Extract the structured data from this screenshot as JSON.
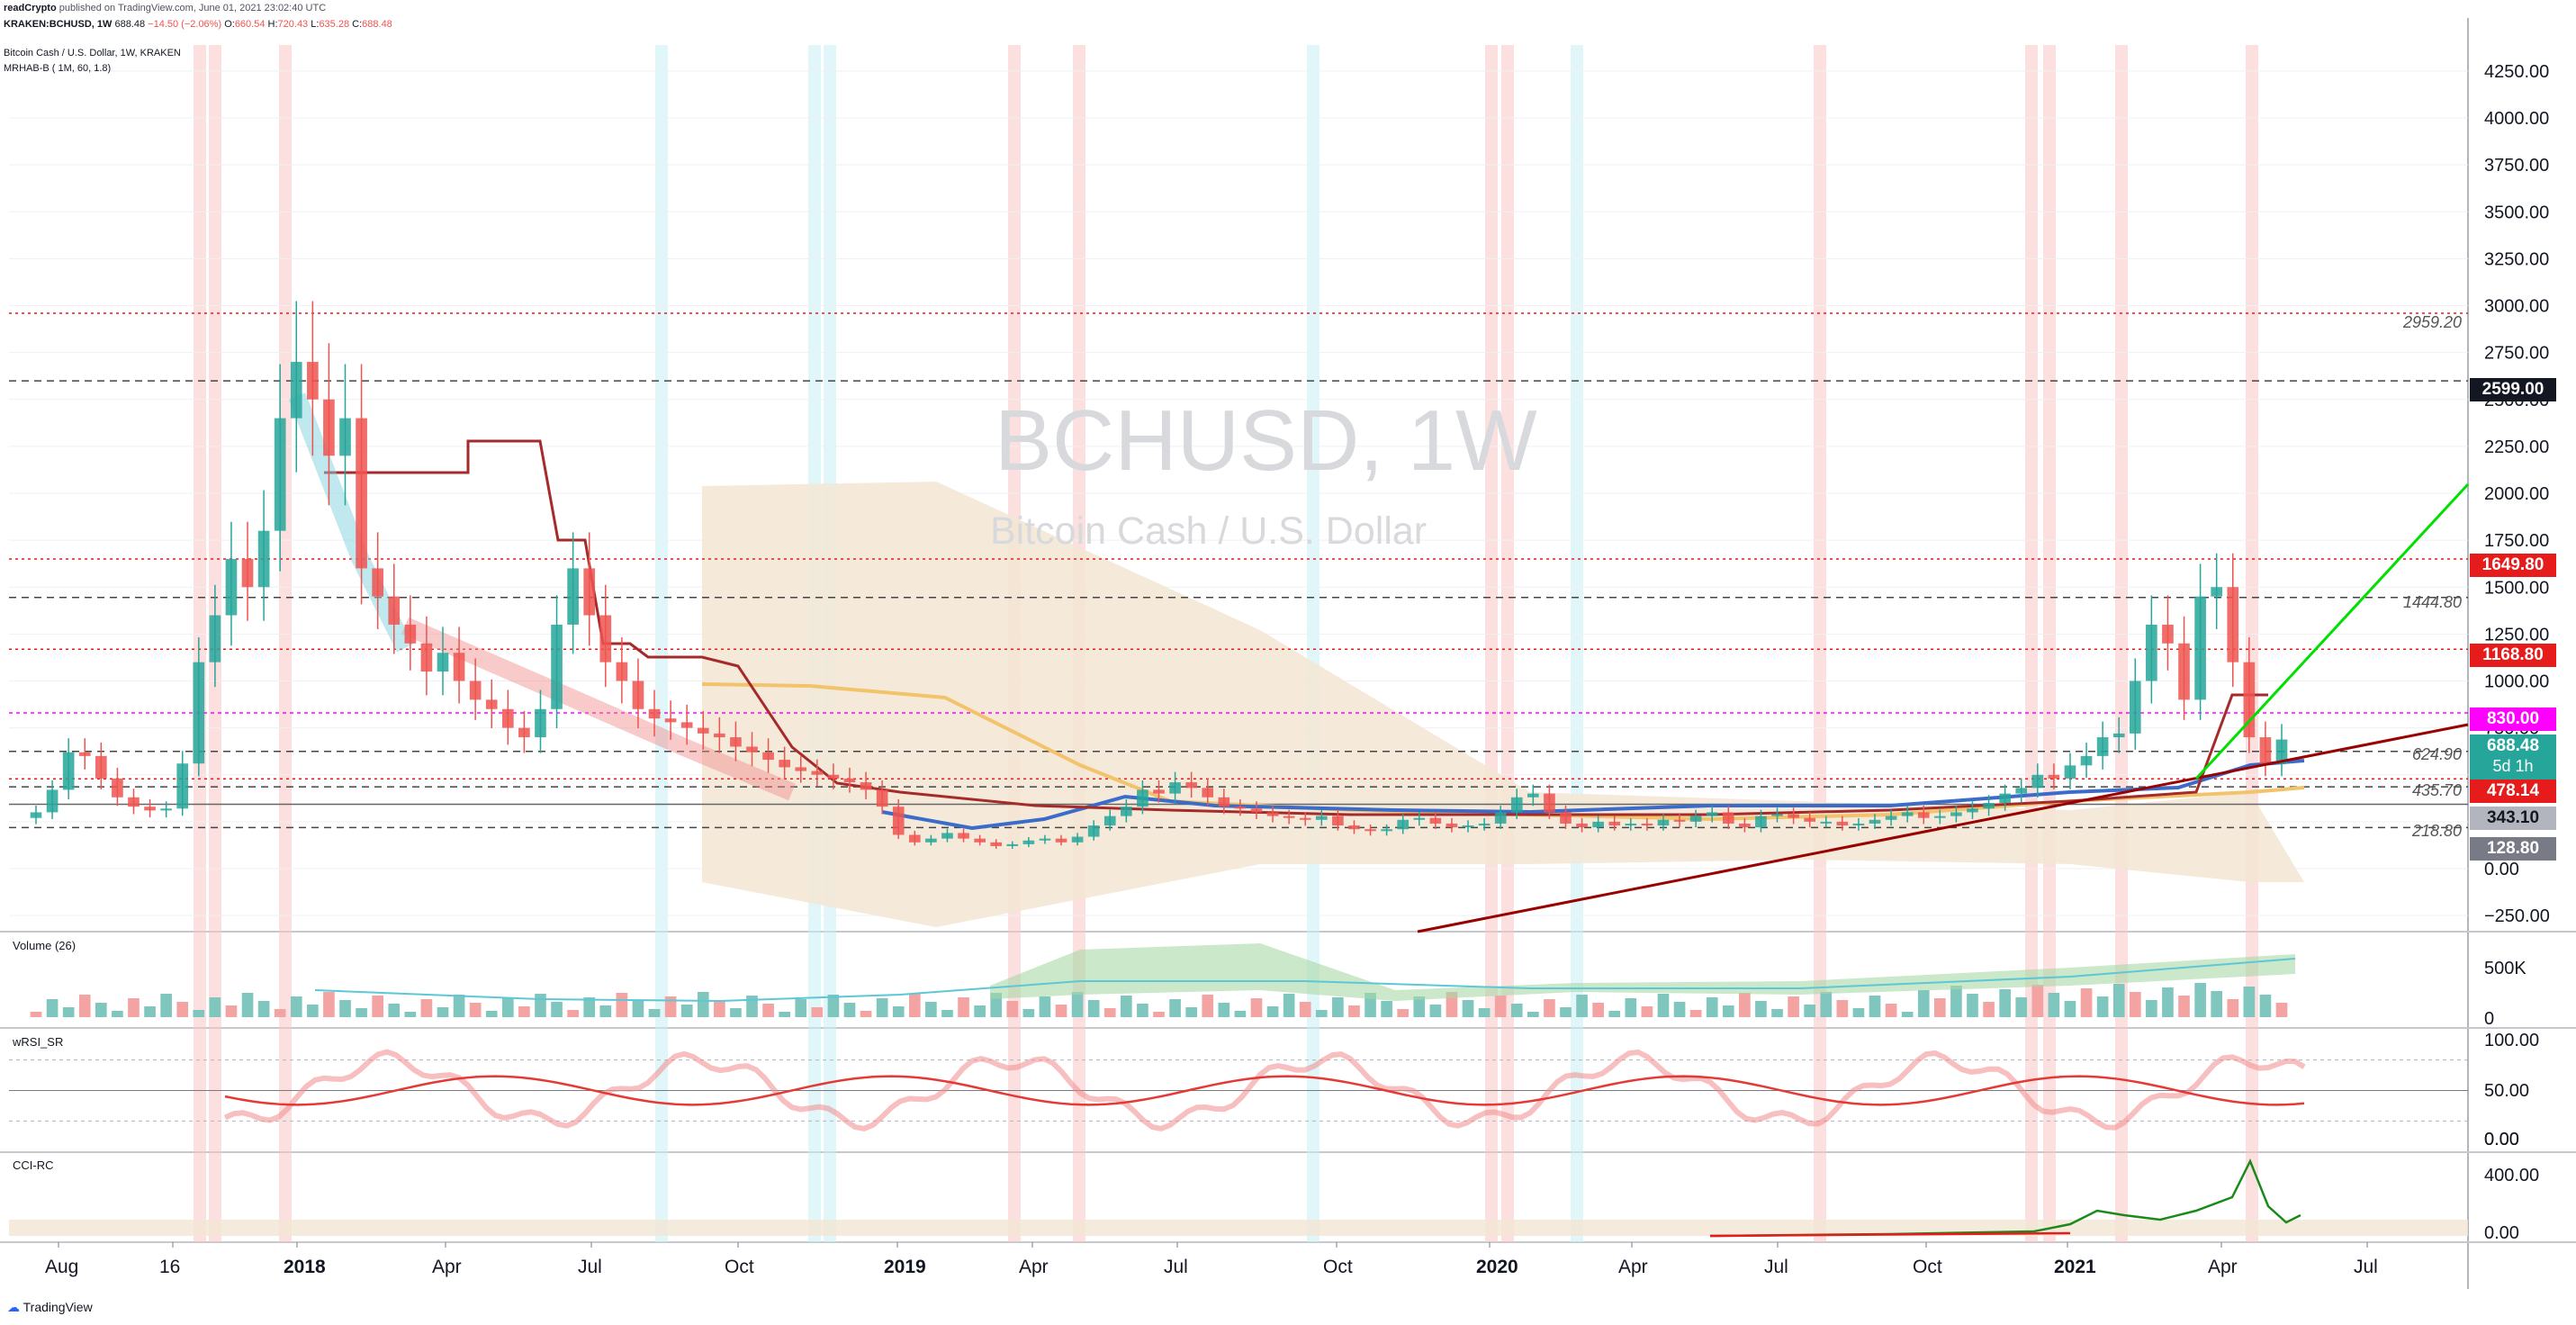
{
  "header": {
    "publisher": "readCrypto",
    "published_text": "published on TradingView.com, June 01, 2021 23:02:40 UTC",
    "symbol_line": "KRAKEN:BCHUSD, 1W",
    "ohlc_price": "688.48",
    "ohlc_change": "−14.50 (−2.06%)",
    "open_label": "O:",
    "open": "660.54",
    "high_label": "H:",
    "high": "720.43",
    "low_label": "L:",
    "low": "635.28",
    "close_label": "C:",
    "close": "688.48"
  },
  "legend": {
    "title": "Bitcoin Cash / U.S. Dollar, 1W, KRAKEN",
    "indicator": "MRHAB-B ( 1M, 60, 1.8)"
  },
  "watermark": {
    "symbol": "BCHUSD, 1W",
    "description": "Bitcoin Cash / U.S. Dollar"
  },
  "colors": {
    "up": "#26a69a",
    "down": "#ef5350",
    "accent_green": "#00e000",
    "trendline": "#990000",
    "magenta": "#ff00ff"
  },
  "levels": [
    {
      "price": "2959.20",
      "style": "dotted-red"
    },
    {
      "price": "1444.80",
      "style": "dashed-gray"
    },
    {
      "price": "624.90",
      "style": "dashed-gray"
    },
    {
      "price": "435.70",
      "style": "dashed-gray"
    },
    {
      "price": "218.80",
      "style": "dashed-gray"
    }
  ],
  "price_tags": [
    {
      "value": "2599.00",
      "color": "#131722"
    },
    {
      "value": "1649.80",
      "color": "#e61c1c"
    },
    {
      "value": "1168.80",
      "color": "#e61c1c"
    },
    {
      "value": "830.00",
      "color": "#ff00ff"
    },
    {
      "value": "688.48",
      "color": "#26a69a",
      "sub": "5d 1h"
    },
    {
      "value": "478.14",
      "color": "#e61c1c"
    },
    {
      "value": "343.10",
      "color": "#b2b5be"
    },
    {
      "value": "128.80",
      "color": "#787b86"
    }
  ],
  "panes": {
    "volume": {
      "label": "Volume (26)",
      "ticks": [
        "500K",
        "0"
      ]
    },
    "wrsi": {
      "label": "wRSI_SR",
      "ticks": [
        "100.00",
        "50.00",
        "0.00"
      ]
    },
    "cci": {
      "label": "CCI-RC",
      "ticks": [
        "400.00",
        "0.00"
      ]
    }
  },
  "chart_data": {
    "type": "candlestick",
    "title": "BCHUSD, 1W",
    "ylim": [
      -250,
      4500
    ],
    "y_ticks": [
      "4250.00",
      "4000.00",
      "3750.00",
      "3500.00",
      "3250.00",
      "3000.00",
      "2750.00",
      "2500.00",
      "2250.00",
      "2000.00",
      "1750.00",
      "1500.00",
      "1250.00",
      "1000.00",
      "750.00",
      "500.00",
      "250.00",
      "0.00",
      "−250.00"
    ],
    "x_ticks": [
      "Aug",
      "16",
      "2018",
      "Apr",
      "Jul",
      "Oct",
      "2019",
      "Apr",
      "Jul",
      "Oct",
      "2020",
      "Apr",
      "Jul",
      "Oct",
      "2021",
      "Apr",
      "Jul"
    ],
    "closes": [
      300,
      420,
      620,
      600,
      480,
      380,
      330,
      310,
      320,
      560,
      1100,
      1350,
      1650,
      1500,
      1800,
      2400,
      2700,
      2500,
      2200,
      2400,
      1600,
      1450,
      1300,
      1200,
      1050,
      1150,
      1000,
      900,
      850,
      750,
      700,
      850,
      1300,
      1600,
      1350,
      1100,
      1000,
      850,
      800,
      780,
      750,
      720,
      700,
      650,
      620,
      580,
      540,
      520,
      500,
      480,
      460,
      420,
      330,
      180,
      140,
      160,
      190,
      160,
      140,
      120,
      130,
      150,
      160,
      140,
      170,
      230,
      280,
      330,
      420,
      400,
      460,
      430,
      380,
      330,
      320,
      300,
      280,
      270,
      260,
      280,
      230,
      210,
      200,
      210,
      260,
      270,
      240,
      220,
      230,
      240,
      300,
      380,
      400,
      300,
      240,
      220,
      250,
      230,
      240,
      230,
      260,
      250,
      280,
      300,
      240,
      220,
      280,
      290,
      270,
      250,
      250,
      230,
      240,
      260,
      280,
      300,
      270,
      280,
      300,
      320,
      350,
      400,
      430,
      500,
      480,
      550,
      600,
      700,
      720,
      1000,
      1300,
      1200,
      900,
      1450,
      1500,
      1100,
      700,
      560,
      688
    ]
  }
}
